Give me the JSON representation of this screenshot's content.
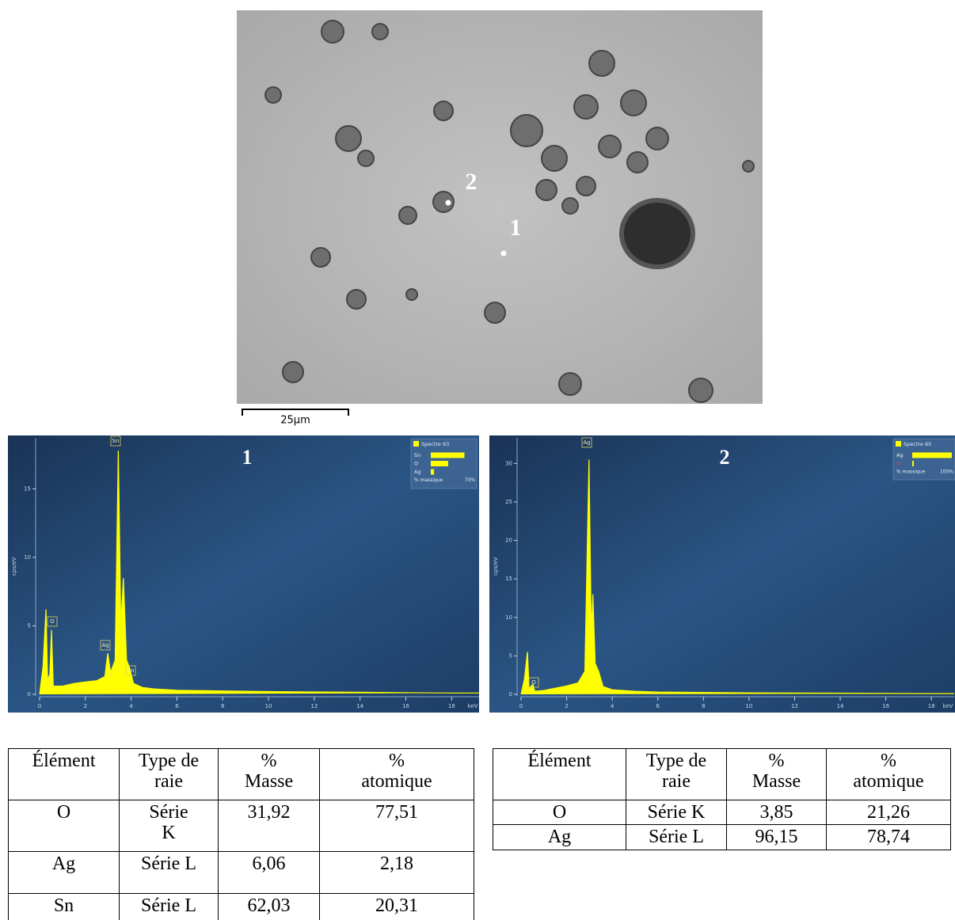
{
  "image": {
    "labels": [
      "1",
      "2"
    ],
    "scale_bar": "25µm"
  },
  "spectra": [
    {
      "type": "line",
      "title": "1",
      "color": "#ffff00",
      "x": [
        0,
        0.15,
        0.28,
        0.35,
        0.45,
        0.52,
        0.6,
        1.0,
        1.5,
        2.0,
        2.5,
        2.85,
        2.98,
        3.1,
        3.3,
        3.44,
        3.55,
        3.66,
        3.8,
        3.92,
        4.1,
        4.5,
        5,
        6,
        8,
        10,
        14,
        18,
        19.2
      ],
      "values": [
        0,
        2,
        6.2,
        1,
        1.5,
        4.7,
        0.6,
        0.6,
        0.8,
        0.9,
        1.0,
        1.3,
        3.0,
        1.6,
        2.5,
        17.8,
        5,
        8.5,
        2.5,
        2.0,
        0.8,
        0.5,
        0.4,
        0.3,
        0.25,
        0.2,
        0.15,
        0.1,
        0.1
      ],
      "xlim": [
        0,
        19.2
      ],
      "ylim": [
        0,
        18.7
      ],
      "xticks": [
        0,
        2,
        4,
        6,
        8,
        10,
        12,
        14,
        16,
        18
      ],
      "yticks": [
        0,
        5,
        10,
        15
      ],
      "xlabel": "keV",
      "ylabel": "cps/eV",
      "peak_labels": [
        "Sn",
        "O",
        "Ag",
        "Sn"
      ],
      "legend": {
        "title": "Spectre 63",
        "elements": [
          "Sn",
          "O",
          "Ag"
        ],
        "values": [
          62.03,
          31.92,
          6.06
        ],
        "scale_label": "% massique",
        "scale": {
          "value": 70,
          "label": "70%"
        }
      }
    },
    {
      "type": "line",
      "title": "2",
      "color": "#ffff00",
      "x": [
        0,
        0.15,
        0.28,
        0.35,
        0.52,
        0.6,
        1,
        1.5,
        2,
        2.5,
        2.8,
        2.98,
        3.08,
        3.15,
        3.25,
        3.4,
        3.6,
        4,
        5,
        6,
        8,
        10,
        14,
        18,
        19
      ],
      "values": [
        0,
        2,
        5.5,
        0.8,
        1.3,
        0.4,
        0.5,
        0.8,
        1.1,
        1.5,
        3,
        30.5,
        8,
        13,
        4,
        3,
        1,
        0.6,
        0.4,
        0.3,
        0.25,
        0.2,
        0.15,
        0.1,
        0.1
      ],
      "xlim": [
        0,
        19
      ],
      "ylim": [
        0,
        33.3
      ],
      "xticks": [
        0,
        2,
        4,
        6,
        8,
        10,
        12,
        14,
        16,
        18
      ],
      "yticks": [
        0,
        5,
        10,
        15,
        20,
        25,
        30
      ],
      "xlabel": "keV",
      "ylabel": "cps/eV",
      "peak_labels": [
        "Ag",
        "O"
      ],
      "legend": {
        "title": "Spectre 65",
        "elements": [
          "Ag",
          "O"
        ],
        "values": [
          96.15,
          3.85
        ],
        "scale_label": "% massique",
        "scale": {
          "value": 100,
          "label": "100%"
        }
      }
    }
  ],
  "tables": [
    {
      "header": [
        "Élément",
        "Type de raie",
        "% Masse",
        "% atomique"
      ],
      "rows": [
        [
          "O",
          "Série K",
          "31,92",
          "77,51"
        ],
        [
          "Ag",
          "Série L",
          "6,06",
          "2,18"
        ],
        [
          "Sn",
          "Série L",
          "62,03",
          "20,31"
        ]
      ]
    },
    {
      "header": [
        "Élément",
        "Type de raie",
        "% Masse",
        "% atomique"
      ],
      "rows": [
        [
          "O",
          "Série K",
          "3,85",
          "21,26"
        ],
        [
          "Ag",
          "Série L",
          "96,15",
          "78,74"
        ]
      ]
    }
  ]
}
